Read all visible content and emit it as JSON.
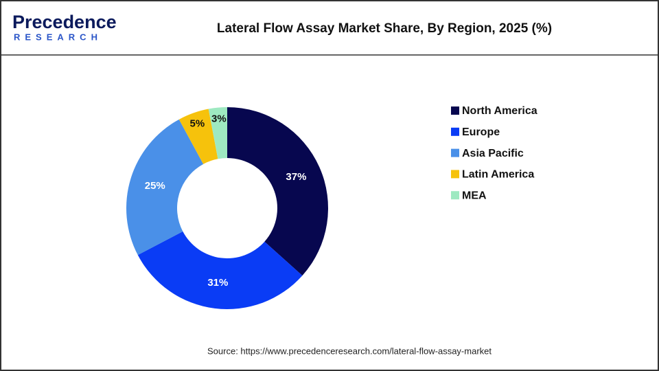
{
  "logo": {
    "name": "Precedence",
    "tagline": "RESEARCH"
  },
  "chart_data": {
    "type": "donut",
    "title": "Lateral Flow Assay Market Share, By Region, 2025 (%)",
    "categories": [
      "North America",
      "Europe",
      "Asia Pacific",
      "Latin America",
      "MEA"
    ],
    "values": [
      37,
      31,
      25,
      5,
      3
    ],
    "value_labels": [
      "37%",
      "31%",
      "25%",
      "5%",
      "3%"
    ],
    "colors": [
      "#07074f",
      "#0a3cf5",
      "#4a90e8",
      "#f6c20c",
      "#9ee9c1"
    ],
    "legend": "right",
    "source": "Source: https://www.precedenceresearch.com/lateral-flow-assay-market"
  }
}
